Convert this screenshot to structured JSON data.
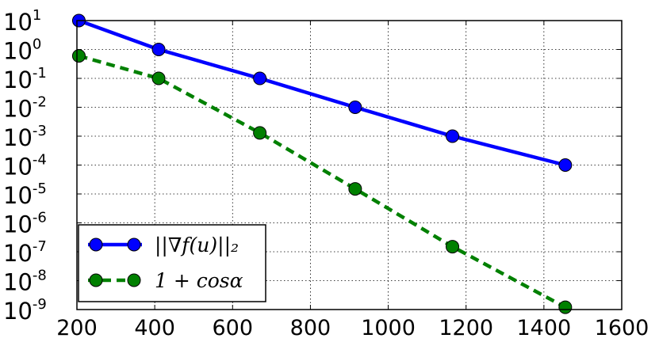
{
  "chart_data": {
    "type": "line",
    "y_scale": "log",
    "grid": true,
    "legend_position": "lower-left",
    "xlim": [
      200,
      1600
    ],
    "ylim": [
      1e-09,
      10
    ],
    "x_ticks": [
      "200",
      "400",
      "600",
      "800",
      "1000",
      "1200",
      "1400",
      "1600"
    ],
    "y_ticks": [
      {
        "base": "10",
        "exp": "1"
      },
      {
        "base": "10",
        "exp": "0"
      },
      {
        "base": "10",
        "exp": "-1"
      },
      {
        "base": "10",
        "exp": "-2"
      },
      {
        "base": "10",
        "exp": "-3"
      },
      {
        "base": "10",
        "exp": "-4"
      },
      {
        "base": "10",
        "exp": "-5"
      },
      {
        "base": "10",
        "exp": "-6"
      },
      {
        "base": "10",
        "exp": "-7"
      },
      {
        "base": "10",
        "exp": "-8"
      },
      {
        "base": "10",
        "exp": "-9"
      }
    ],
    "series": [
      {
        "name": "||∇f(u)||₂",
        "color": "#0000ff",
        "line_style": "solid",
        "marker": "circle",
        "x": [
          205,
          410,
          670,
          915,
          1165,
          1455
        ],
        "y": [
          10,
          1,
          0.1,
          0.01,
          0.001,
          0.0001
        ]
      },
      {
        "name": "1 + cosα",
        "color": "#008000",
        "line_style": "dashed",
        "marker": "circle",
        "x": [
          205,
          410,
          670,
          915,
          1165,
          1455
        ],
        "y": [
          0.6,
          0.1,
          0.0013,
          1.5e-05,
          1.5e-07,
          1.2e-09
        ]
      }
    ]
  }
}
